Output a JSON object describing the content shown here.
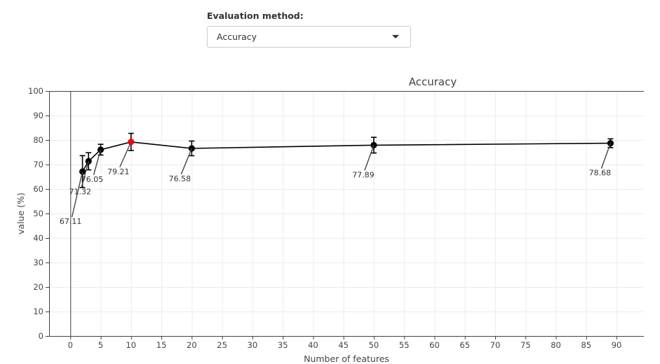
{
  "control": {
    "label": "Evaluation method:",
    "selected": "Accuracy",
    "icon": "chevron-down-icon"
  },
  "chart_data": {
    "type": "line",
    "title": "Accuracy",
    "xlabel": "Number of features",
    "ylabel": "value (%)",
    "xlim": [
      -3.5,
      94.5
    ],
    "ylim": [
      0,
      100
    ],
    "xticks": [
      0,
      5,
      10,
      15,
      20,
      25,
      30,
      35,
      40,
      45,
      50,
      55,
      60,
      65,
      70,
      75,
      80,
      85,
      90
    ],
    "yticks": [
      0,
      10,
      20,
      30,
      40,
      50,
      60,
      70,
      80,
      90,
      100
    ],
    "grid": true,
    "series": [
      {
        "x": [
          2,
          3,
          5,
          10,
          20,
          50,
          89
        ],
        "y": [
          67.11,
          71.32,
          76.05,
          79.21,
          76.58,
          77.89,
          78.68
        ],
        "error": [
          6.5,
          3.5,
          2.2,
          3.5,
          3.0,
          3.2,
          1.8
        ],
        "labels": [
          "67.11",
          "71.32",
          "76.05",
          "79.21",
          "76.58",
          "77.89",
          "78.68"
        ],
        "highlight_index": 3,
        "color": "#000000",
        "highlight_color": "#ff0000"
      }
    ]
  }
}
